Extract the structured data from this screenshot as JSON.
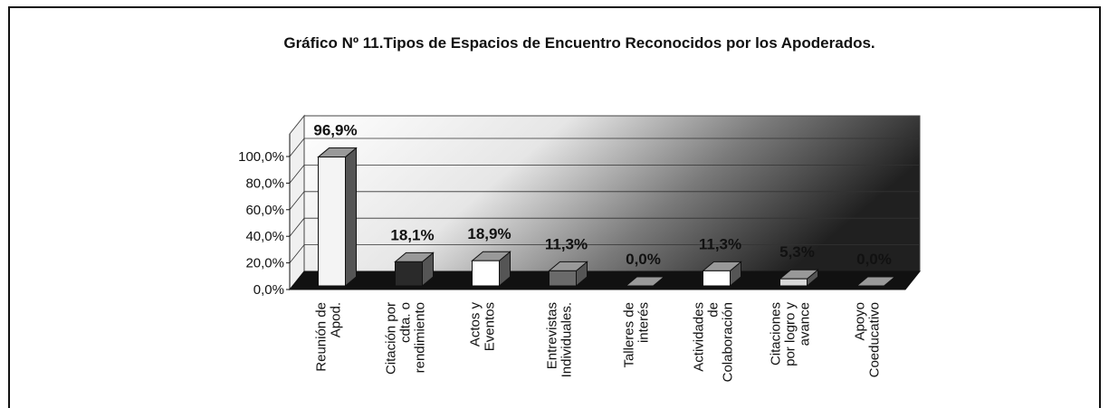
{
  "chart_data": {
    "type": "bar3d",
    "title": "Gráfico Nº 11.Tipos de Espacios de Encuentro Reconocidos por los Apoderados.",
    "categories": [
      "Reunión de\nApod.",
      "Citación por\ncdta. o\nrendimiento",
      "Actos y\nEventos",
      "Entrevistas\nIndividuales.",
      "Talleres de\ninterés",
      "Actividades\nde\nColaboración",
      "Citaciones\npor logro y\navance",
      "Apoyo\nCoeducativo"
    ],
    "values": [
      96.9,
      18.1,
      18.9,
      11.3,
      0,
      11.3,
      5.3,
      0
    ],
    "value_labels": [
      "96,9%",
      "18,1%",
      "18,9%",
      "11,3%",
      "0,0%",
      "11,3%",
      "5,3%",
      "0,0%"
    ],
    "colors": [
      "#f4f4f4",
      "#2a2a2a",
      "#ffffff",
      "#6a6a6a",
      "#ffffff",
      "#ffffff",
      "#d8d8d8",
      "#ffffff"
    ],
    "ylim": [
      0,
      100
    ],
    "yticks": [
      {
        "value": 0,
        "label": "0,0%"
      },
      {
        "value": 20,
        "label": "20,0%"
      },
      {
        "value": 40,
        "label": "40,0%"
      },
      {
        "value": 60,
        "label": "60,0%"
      },
      {
        "value": 80,
        "label": "80,0%"
      },
      {
        "value": 100,
        "label": "100,0%"
      }
    ],
    "grid": true
  }
}
